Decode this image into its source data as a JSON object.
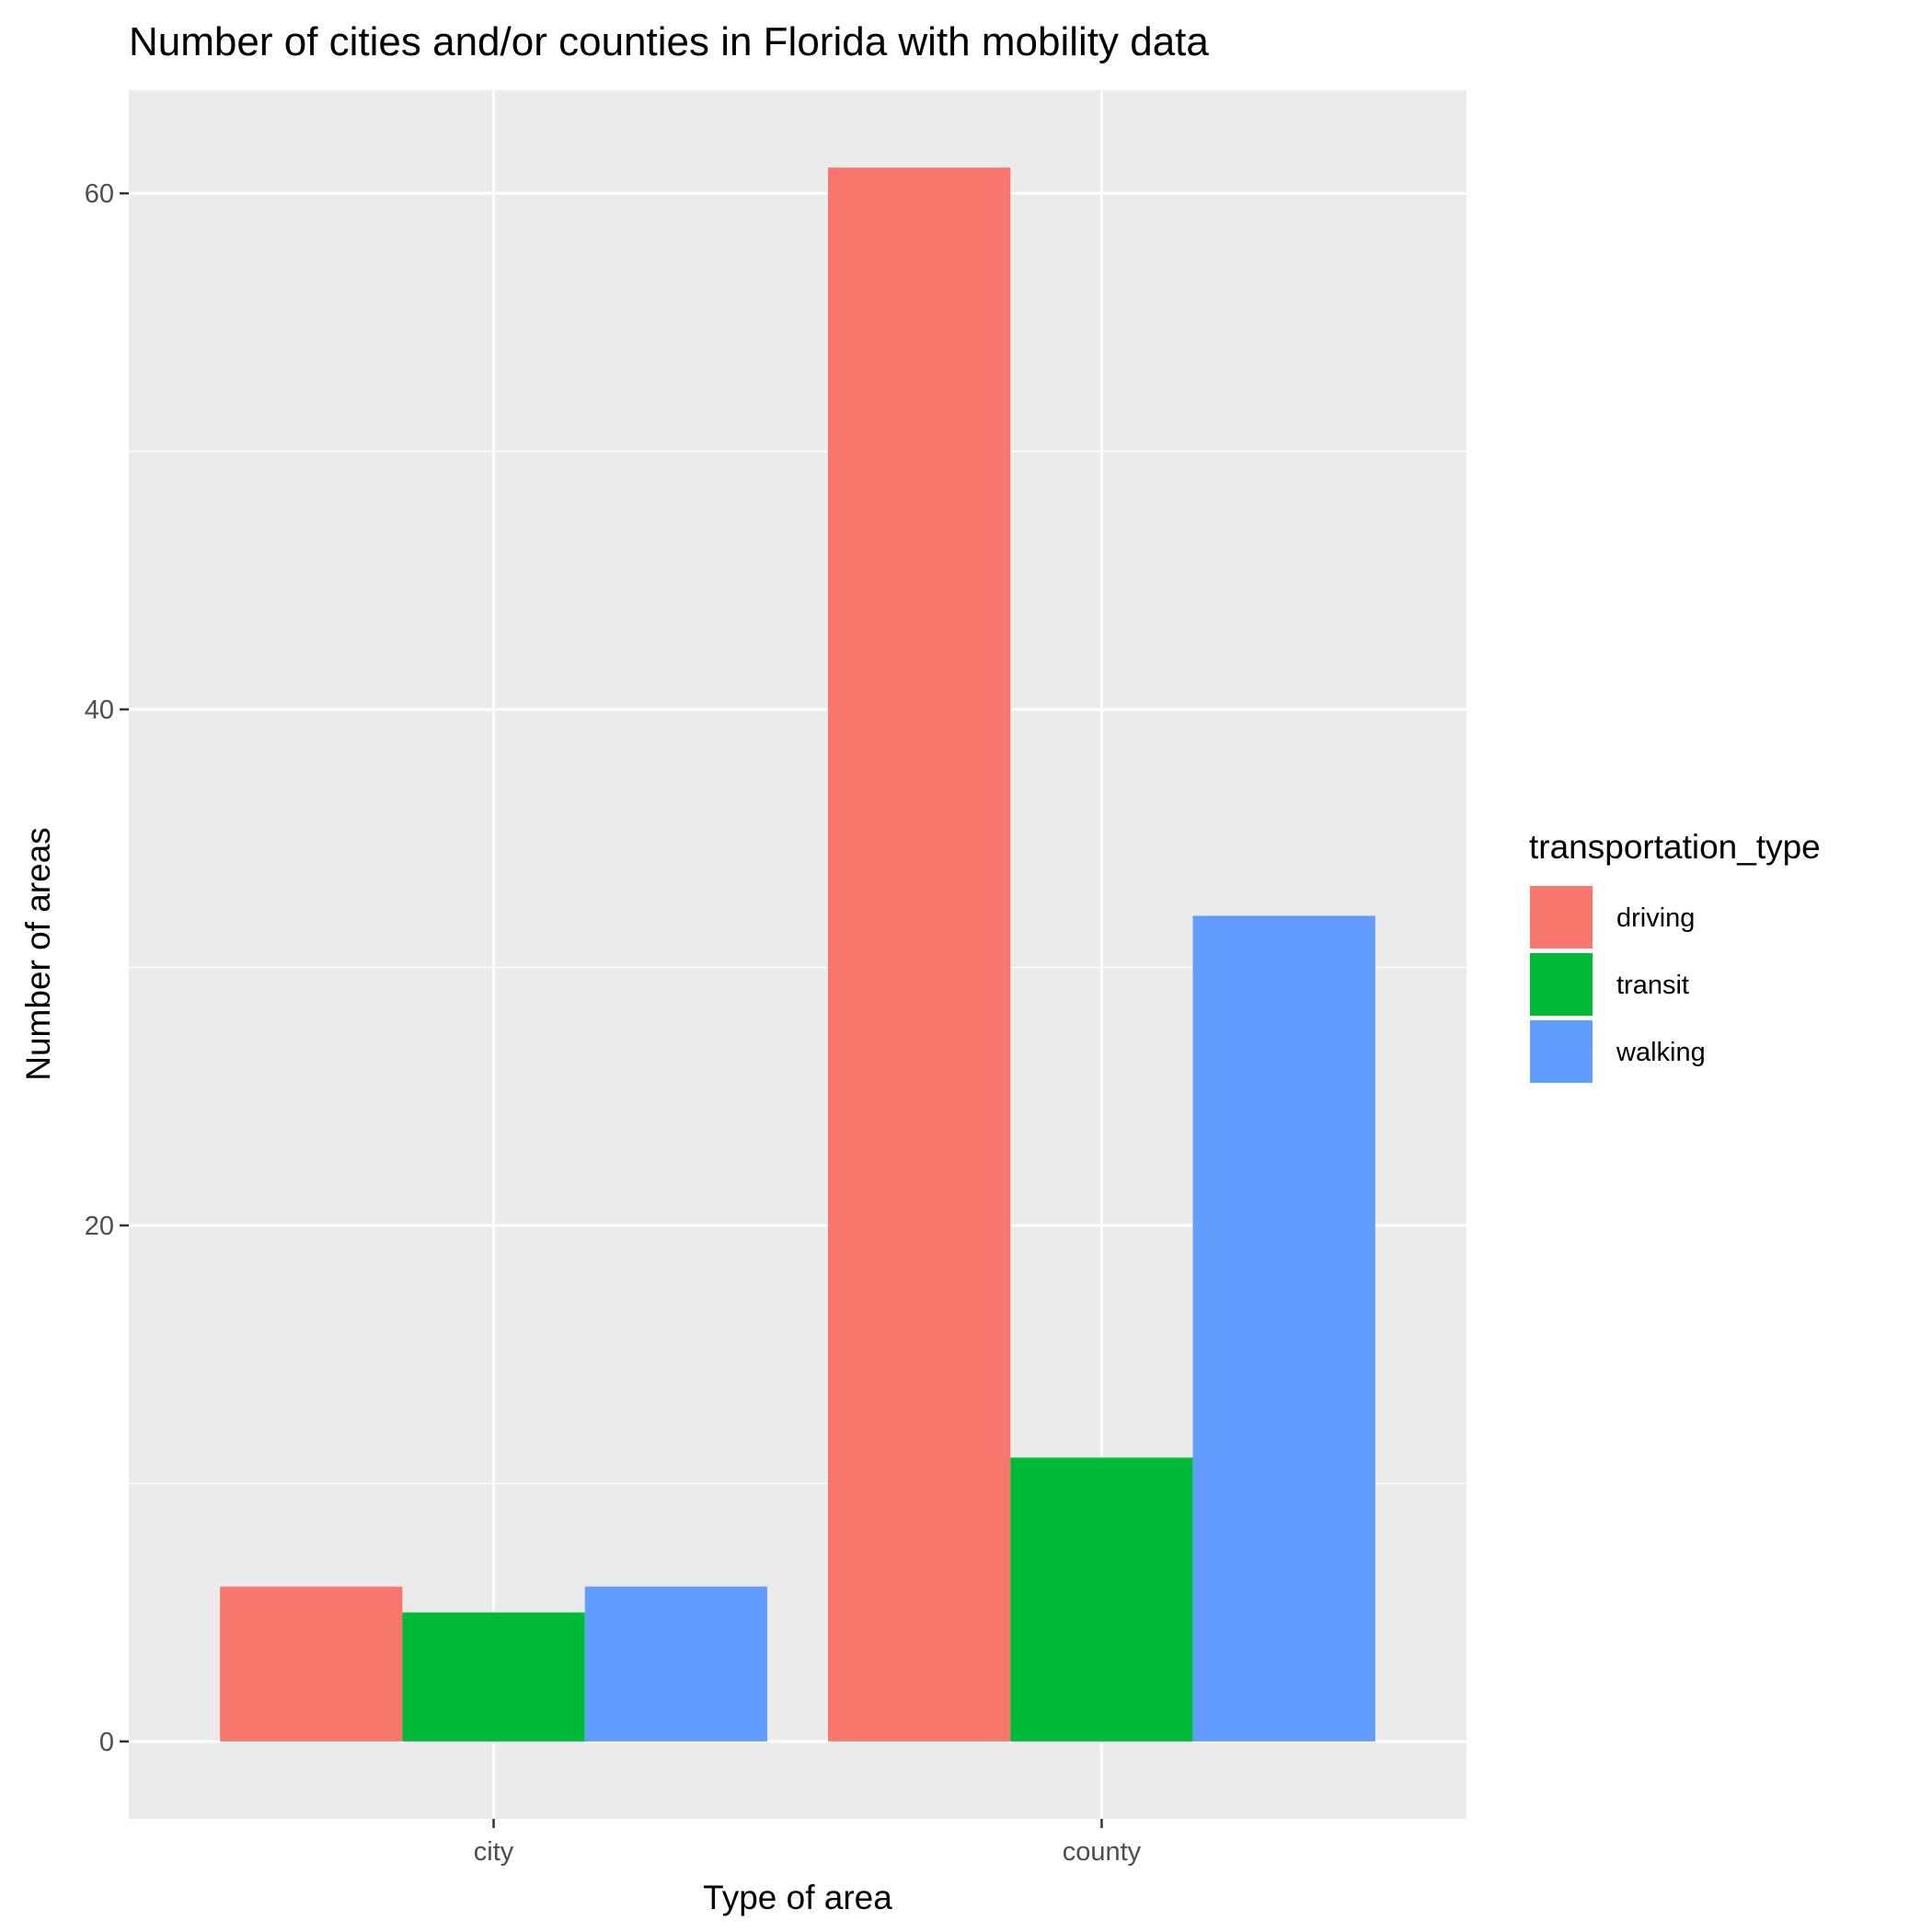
{
  "chart_data": {
    "type": "bar",
    "title": "Number of cities and/or counties in Florida with mobility data",
    "xlabel": "Type of area",
    "ylabel": "Number of areas",
    "categories": [
      "city",
      "county"
    ],
    "series": [
      {
        "name": "driving",
        "color": "#F8766D",
        "values": [
          6,
          61
        ]
      },
      {
        "name": "transit",
        "color": "#00BA38",
        "values": [
          5,
          11
        ]
      },
      {
        "name": "walking",
        "color": "#619CFF",
        "values": [
          6,
          32
        ]
      }
    ],
    "ylim": [
      -3,
      64
    ],
    "yticks": [
      0,
      20,
      40,
      60
    ],
    "grid": true,
    "panel_background": "#EBEBEB",
    "legend": {
      "title": "transportation_type",
      "position": "right"
    }
  }
}
